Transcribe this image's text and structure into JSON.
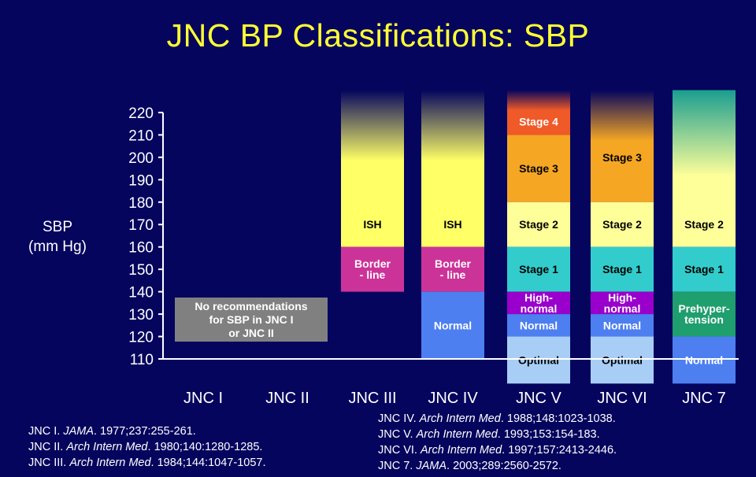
{
  "title": "JNC BP Classifications: SBP",
  "ylabel_lines": [
    "SBP",
    "(mm Hg)"
  ],
  "note_lines": [
    "No recommendations",
    "for SBP in JNC I",
    "or JNC II"
  ],
  "chart_data": {
    "type": "bar",
    "y_ticks": [
      110,
      120,
      130,
      140,
      150,
      160,
      170,
      180,
      190,
      200,
      210,
      220
    ],
    "ylim": [
      110,
      220
    ],
    "categories": [
      "JNC I",
      "JNC II",
      "JNC III",
      "JNC IV",
      "JNC V",
      "JNC VI",
      "JNC 7"
    ],
    "columns": [
      {
        "category": "JNC I",
        "segments": []
      },
      {
        "category": "JNC II",
        "segments": []
      },
      {
        "category": "JNC III",
        "segments": [
          {
            "label": "ISH",
            "from": 160,
            "to": 230,
            "color": "#ffff66",
            "fade": true
          },
          {
            "label": "Border\n- line",
            "from": 140,
            "to": 160,
            "color": "#cc3399",
            "text_color": "#ffffff"
          }
        ]
      },
      {
        "category": "JNC IV",
        "segments": [
          {
            "label": "ISH",
            "from": 160,
            "to": 230,
            "color": "#ffff66",
            "fade": true
          },
          {
            "label": "Border\n- line",
            "from": 140,
            "to": 160,
            "color": "#cc3399",
            "text_color": "#ffffff"
          },
          {
            "label": "Normal",
            "from": 110,
            "to": 140,
            "color": "#4d7ff0",
            "text_color": "#ffffff"
          }
        ]
      },
      {
        "category": "JNC V",
        "segments": [
          {
            "label": "Stage 4",
            "from": 210,
            "to": 230,
            "color": "#f05a28",
            "fade": true,
            "text_color": "#ffffff"
          },
          {
            "label": "Stage 3",
            "from": 180,
            "to": 210,
            "color": "#f5a623"
          },
          {
            "label": "Stage 2",
            "from": 160,
            "to": 180,
            "color": "#ffff99"
          },
          {
            "label": "Stage 1",
            "from": 140,
            "to": 160,
            "color": "#33cccc"
          },
          {
            "label": "High-\nnormal",
            "from": 130,
            "to": 140,
            "color": "#9900cc",
            "text_color": "#ffffff"
          },
          {
            "label": "Normal",
            "from": 120,
            "to": 130,
            "color": "#4d7ff0",
            "text_color": "#ffffff"
          },
          {
            "label": "Optimal",
            "from": 99,
            "to": 120,
            "color": "#a8cef5"
          }
        ]
      },
      {
        "category": "JNC VI",
        "segments": [
          {
            "label": "Stage 3",
            "from": 180,
            "to": 230,
            "color": "#f5a623",
            "fade": true
          },
          {
            "label": "Stage 2",
            "from": 160,
            "to": 180,
            "color": "#ffff99"
          },
          {
            "label": "Stage 1",
            "from": 140,
            "to": 160,
            "color": "#33cccc"
          },
          {
            "label": "High-\nnormal",
            "from": 130,
            "to": 140,
            "color": "#9900cc",
            "text_color": "#ffffff"
          },
          {
            "label": "Normal",
            "from": 120,
            "to": 130,
            "color": "#4d7ff0",
            "text_color": "#ffffff"
          },
          {
            "label": "Optimal",
            "from": 99,
            "to": 120,
            "color": "#a8cef5"
          }
        ]
      },
      {
        "category": "JNC 7",
        "segments": [
          {
            "label": "Stage 2",
            "from": 160,
            "to": 230,
            "color": "#ffff99",
            "top_color": "#1a9e90",
            "gradient": true
          },
          {
            "label": "Stage 1",
            "from": 140,
            "to": 160,
            "color": "#33cccc"
          },
          {
            "label": "Prehyper-\ntension",
            "from": 120,
            "to": 140,
            "color": "#1f9e6e",
            "text_color": "#ffffff"
          },
          {
            "label": "Normal",
            "from": 99,
            "to": 120,
            "color": "#4d7ff0",
            "text_color": "#ffffff"
          }
        ]
      }
    ]
  },
  "refs_left": [
    {
      "a": "JNC I. ",
      "j": "JAMA",
      "b": ". 1977;237:255-261."
    },
    {
      "a": "JNC II. ",
      "j": "Arch Intern Med",
      "b": ". 1980;140:1280-1285."
    },
    {
      "a": "JNC III. ",
      "j": "Arch Intern Med",
      "b": ". 1984;144:1047-1057."
    }
  ],
  "refs_right": [
    {
      "a": "JNC IV. ",
      "j": "Arch Intern Med",
      "b": ". 1988;148:1023-1038."
    },
    {
      "a": "JNC V. ",
      "j": "Arch Intern Med",
      "b": ". 1993;153:154-183."
    },
    {
      "a": "JNC VI. ",
      "j": "Arch Intern Med",
      "b": ". 1997;157:2413-2446."
    },
    {
      "a": "JNC 7. ",
      "j": "JAMA",
      "b": ". 2003;289:2560-2572."
    }
  ],
  "colors": {
    "background": "#05055e",
    "title": "#ffff33",
    "axis": "#ffffff"
  }
}
